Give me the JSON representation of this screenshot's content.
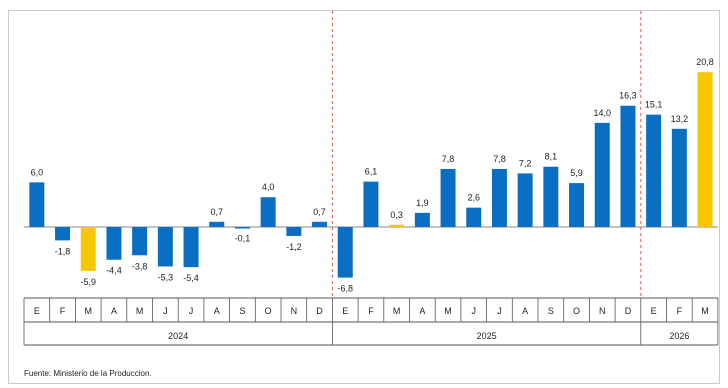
{
  "chart_data": {
    "type": "bar",
    "categories": [
      "E",
      "F",
      "M",
      "A",
      "M",
      "J",
      "J",
      "A",
      "S",
      "O",
      "N",
      "D",
      "E",
      "F",
      "M",
      "A",
      "M",
      "J",
      "J",
      "A",
      "S",
      "O",
      "N",
      "D",
      "E",
      "F",
      "M"
    ],
    "values": [
      6.0,
      -1.8,
      -5.9,
      -4.4,
      -3.8,
      -5.3,
      -5.4,
      0.7,
      -0.1,
      4.0,
      -1.2,
      0.7,
      -6.8,
      6.1,
      0.3,
      1.9,
      7.8,
      2.6,
      7.8,
      7.2,
      8.1,
      5.9,
      14.0,
      16.3,
      15.1,
      13.2,
      20.8
    ],
    "value_labels": [
      "6,0",
      "-1,8",
      "-5,9",
      "-4,4",
      "-3,8",
      "-5,3",
      "-5,4",
      "0,7",
      "-0,1",
      "4,0",
      "-1,2",
      "0,7",
      "-6,8",
      "6,1",
      "0,3",
      "1,9",
      "7,8",
      "2,6",
      "7,8",
      "7,2",
      "8,1",
      "5,9",
      "14,0",
      "16,3",
      "15,1",
      "13,2",
      "20,8"
    ],
    "highlight": [
      false,
      false,
      true,
      false,
      false,
      false,
      false,
      false,
      false,
      false,
      false,
      false,
      false,
      false,
      true,
      false,
      false,
      false,
      false,
      false,
      false,
      false,
      false,
      false,
      false,
      false,
      true
    ],
    "year_groups": [
      {
        "label": "2024",
        "count": 12
      },
      {
        "label": "2025",
        "count": 12
      },
      {
        "label": "2026",
        "count": 3
      }
    ],
    "colors": {
      "bar": "#0a6fc2",
      "highlight": "#f6c700",
      "separator": "#e05555",
      "axis": "#555555"
    },
    "grid": false,
    "ylim": [
      -8,
      22
    ],
    "title": "",
    "xlabel": "",
    "ylabel": ""
  },
  "footer": {
    "source": "Fuente: Ministerio de la Produccion."
  }
}
